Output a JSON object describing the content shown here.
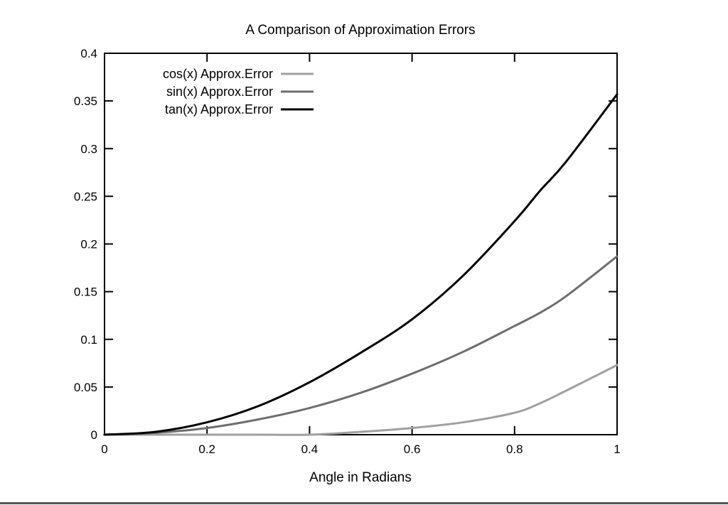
{
  "chart_data": {
    "type": "line",
    "title": "A Comparison of Approximation Errors",
    "xlabel": "Angle in Radians",
    "ylabel": "",
    "xlim": [
      0,
      1
    ],
    "ylim": [
      0,
      0.4
    ],
    "x_ticks": [
      0,
      0.2,
      0.4,
      0.6,
      0.8,
      1
    ],
    "x_tick_labels": [
      "0",
      "0.2",
      "0.4",
      "0.6",
      "0.8",
      "1"
    ],
    "y_ticks": [
      0,
      0.05,
      0.1,
      0.15,
      0.2,
      0.25,
      0.3,
      0.35,
      0.4
    ],
    "y_tick_labels": [
      "0",
      "0.05",
      "0.1",
      "0.15",
      "0.2",
      "0.25",
      "0.3",
      "0.35",
      "0.4"
    ],
    "grid": false,
    "legend_position": "top-left",
    "x": [
      0,
      0.1,
      0.2,
      0.3,
      0.4,
      0.5,
      0.6,
      0.7,
      0.8,
      0.85,
      0.9,
      1.0
    ],
    "series": [
      {
        "name": "cos(x) Approx.Error",
        "color": "#a0a0a0",
        "values": [
          0,
          0,
          0,
          0,
          0,
          0.003,
          0.007,
          0.013,
          0.023,
          0.033,
          0.046,
          0.073
        ]
      },
      {
        "name": "sin(x) Approx.Error",
        "color": "#6e6e6e",
        "values": [
          0,
          0.002,
          0.007,
          0.016,
          0.028,
          0.044,
          0.064,
          0.087,
          0.114,
          0.128,
          0.145,
          0.187
        ]
      },
      {
        "name": "tan(x) Approx.Error",
        "color": "#000000",
        "values": [
          0,
          0.003,
          0.013,
          0.03,
          0.055,
          0.086,
          0.121,
          0.167,
          0.224,
          0.256,
          0.286,
          0.357
        ]
      }
    ]
  }
}
